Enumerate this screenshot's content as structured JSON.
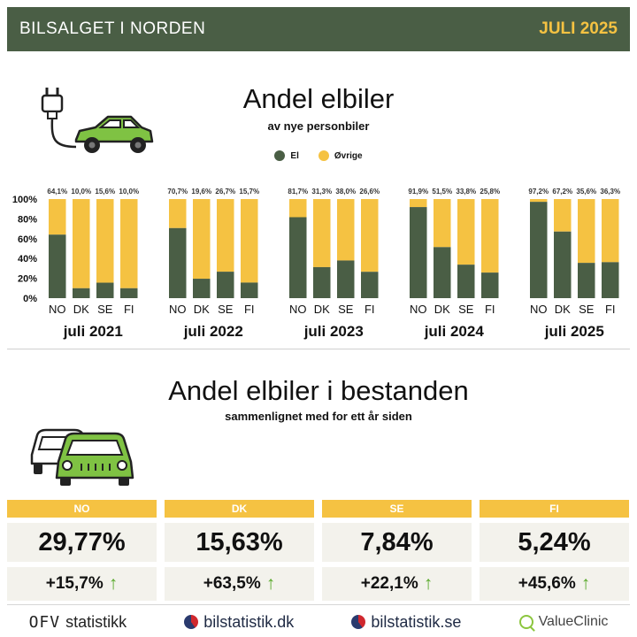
{
  "header": {
    "brand": "BILSALGET I NORDEN",
    "date": "JULI 2025"
  },
  "section1": {
    "title": "Andel elbiler",
    "subtitle": "av nye personbiler"
  },
  "legend": [
    {
      "label": "El",
      "color": "#4a5e45"
    },
    {
      "label": "Øvrige",
      "color": "#f5c242"
    }
  ],
  "chart_data": {
    "type": "bar",
    "stacked": true,
    "ylim": [
      0,
      100
    ],
    "yticks": [
      "0%",
      "20%",
      "40%",
      "60%",
      "80%",
      "100%"
    ],
    "countries": [
      "NO",
      "DK",
      "SE",
      "FI"
    ],
    "series": [
      {
        "name": "El",
        "color": "#4a5e45"
      },
      {
        "name": "Øvrige",
        "color": "#f5c242"
      }
    ],
    "groups": [
      {
        "label": "juli 2021",
        "values": [
          64.1,
          10.0,
          15.6,
          10.0
        ],
        "labels": [
          "64,1%",
          "10,0%",
          "15,6%",
          "10,0%"
        ]
      },
      {
        "label": "juli 2022",
        "values": [
          70.7,
          19.6,
          26.7,
          15.7
        ],
        "labels": [
          "70,7%",
          "19,6%",
          "26,7%",
          "15,7%"
        ]
      },
      {
        "label": "juli 2023",
        "values": [
          81.7,
          31.3,
          38.0,
          26.6
        ],
        "labels": [
          "81,7%",
          "31,3%",
          "38,0%",
          "26,6%"
        ]
      },
      {
        "label": "juli 2024",
        "values": [
          91.9,
          51.5,
          33.8,
          25.8
        ],
        "labels": [
          "91,9%",
          "51,5%",
          "33,8%",
          "25,8%"
        ]
      },
      {
        "label": "juli 2025",
        "values": [
          97.2,
          67.2,
          35.6,
          36.3
        ],
        "labels": [
          "97,2%",
          "67,2%",
          "35,6%",
          "36,3%"
        ]
      }
    ]
  },
  "section2": {
    "title": "Andel elbiler i bestanden",
    "subtitle": "sammenlignet med for ett år siden"
  },
  "cards": [
    {
      "country": "NO",
      "share": "29,77%",
      "change": "+15,7%"
    },
    {
      "country": "DK",
      "share": "15,63%",
      "change": "+63,5%"
    },
    {
      "country": "SE",
      "share": "7,84%",
      "change": "+22,1%"
    },
    {
      "country": "FI",
      "share": "5,24%",
      "change": "+45,6%"
    }
  ],
  "footer": {
    "ofv_mark": "OFV",
    "ofv_text": "statistikk",
    "dk_text": "bilstatistik.dk",
    "se_text": "bilstatistik.se",
    "vc_text": "ValueClinic"
  },
  "icons": {
    "ev_car": "ev-car-plug-icon",
    "cars": "two-cars-icon",
    "arrow": "arrow-up-icon"
  }
}
